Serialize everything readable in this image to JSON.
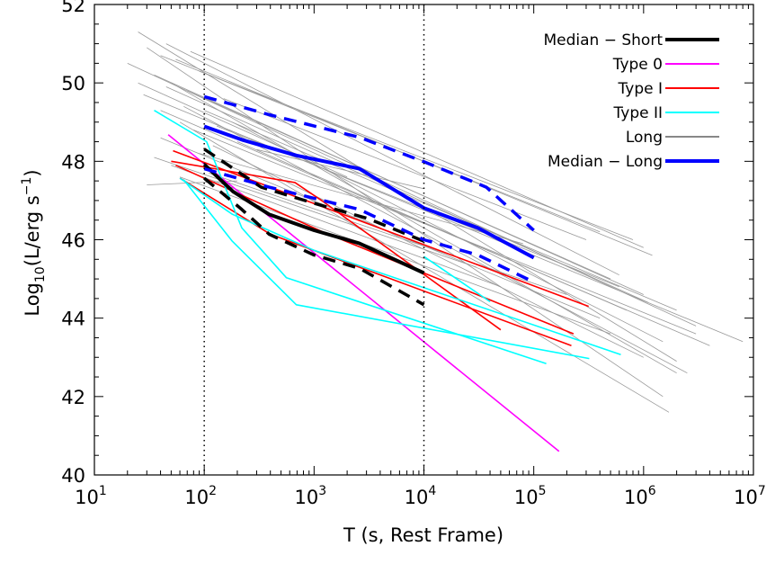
{
  "chart_data": {
    "type": "line",
    "xlabel": "T (s, Rest Frame)",
    "ylabel_main": "Log",
    "ylabel_sub": "10",
    "ylabel_rest": "(L/erg s",
    "ylabel_sup": "−1",
    "ylabel_close": ")",
    "xscale": "log",
    "xlim": [
      10,
      10000000
    ],
    "ylim": [
      40,
      52
    ],
    "xticks": [
      {
        "base": "10",
        "exp": "1",
        "v": 10
      },
      {
        "base": "10",
        "exp": "2",
        "v": 100
      },
      {
        "base": "10",
        "exp": "3",
        "v": 1000
      },
      {
        "base": "10",
        "exp": "4",
        "v": 10000
      },
      {
        "base": "10",
        "exp": "5",
        "v": 100000
      },
      {
        "base": "10",
        "exp": "6",
        "v": 1000000
      },
      {
        "base": "10",
        "exp": "7",
        "v": 10000000
      }
    ],
    "yticks": [
      "40",
      "42",
      "44",
      "46",
      "48",
      "50",
      "52"
    ],
    "vlines": [
      100,
      10000
    ],
    "grid": false,
    "legend_position": "top-right",
    "legend": [
      {
        "label": "Median − Short",
        "color": "#000000",
        "width": 4
      },
      {
        "label": "Type 0",
        "color": "#ff00ff",
        "width": 2
      },
      {
        "label": "Type I",
        "color": "#ff0000",
        "width": 2
      },
      {
        "label": "Type II",
        "color": "#00ffff",
        "width": 2
      },
      {
        "label": "Long",
        "color": "#888888",
        "width": 2
      },
      {
        "label": "Median − Long",
        "color": "#0000ff",
        "width": 4
      }
    ],
    "series": [
      {
        "group": "Long",
        "color": "#999999",
        "width": 0.8,
        "lines": [
          [
            [
              20,
              50.5
            ],
            [
              3000000.0,
              43.8
            ]
          ],
          [
            [
              25,
              51.3
            ],
            [
              2000000.0,
              42.9
            ]
          ],
          [
            [
              30,
              50.9
            ],
            [
              1500000.0,
              42.0
            ]
          ],
          [
            [
              28,
              49.7
            ],
            [
              8000000.0,
              43.4
            ]
          ],
          [
            [
              35,
              50.2
            ],
            [
              1000000.0,
              44.6
            ]
          ],
          [
            [
              40,
              49.3
            ],
            [
              4000000.0,
              43.3
            ]
          ],
          [
            [
              45,
              51.0
            ],
            [
              600000.0,
              45.1
            ]
          ],
          [
            [
              50,
              50.0
            ],
            [
              2000000.0,
              42.6
            ]
          ],
          [
            [
              60,
              49.0
            ],
            [
              1700000.0,
              41.6
            ]
          ],
          [
            [
              55,
              50.6
            ],
            [
              1200000.0,
              45.6
            ]
          ],
          [
            [
              70,
              49.8
            ],
            [
              500000.0,
              45.0
            ]
          ],
          [
            [
              80,
              48.8
            ],
            [
              3000000.0,
              43.6
            ]
          ],
          [
            [
              90,
              50.3
            ],
            [
              800000.0,
              46.0
            ]
          ],
          [
            [
              40,
              48.6
            ],
            [
              400000.0,
              44.0
            ]
          ],
          [
            [
              100,
              49.3
            ],
            [
              2000000.0,
              44.2
            ]
          ],
          [
            [
              120,
              48.4
            ],
            [
              1000000.0,
              43.0
            ]
          ],
          [
            [
              150,
              49.6
            ],
            [
              300000.0,
              46.0
            ]
          ],
          [
            [
              60,
              47.6
            ],
            [
              500000.0,
              43.6
            ]
          ],
          [
            [
              130,
              48.9
            ],
            [
              600000.0,
              44.8
            ]
          ],
          [
            [
              45,
              49.9
            ],
            [
              1100000.0,
              44.4
            ]
          ],
          [
            [
              30,
              47.4
            ],
            [
              200,
              47.5
            ]
          ],
          [
            [
              110,
              47.7
            ],
            [
              200000.0,
              44.6
            ]
          ],
          [
            [
              200,
              48.5
            ],
            [
              700000.0,
              44.2
            ]
          ],
          [
            [
              35,
              48.1
            ],
            [
              30000.0,
              45.3
            ]
          ],
          [
            [
              50,
              47.9
            ],
            [
              50000.0,
              44.8
            ]
          ],
          [
            [
              75,
              50.8
            ],
            [
              1000000.0,
              45.8
            ]
          ],
          [
            [
              300,
              48.3
            ],
            [
              10000.0,
              47.3
            ]
          ],
          [
            [
              25,
              50.0
            ],
            [
              2000,
              47.6
            ]
          ],
          [
            [
              65,
              49.4
            ],
            [
              2500000.0,
              42.6
            ]
          ],
          [
            [
              180,
              49.0
            ],
            [
              1500000.0,
              43.4
            ]
          ],
          [
            [
              90,
              48.2
            ],
            [
              80000.0,
              45.9
            ]
          ],
          [
            [
              40,
              50.7
            ],
            [
              400000.0,
              46.2
            ]
          ]
        ]
      },
      {
        "group": "Type 0",
        "color": "#ff00ff",
        "width": 1.6,
        "lines": [
          [
            [
              47,
              48.68
            ],
            [
              170000,
              40.6
            ]
          ]
        ]
      },
      {
        "group": "Type I",
        "color": "#ff0000",
        "width": 1.6,
        "lines": [
          [
            [
              52,
              48.27
            ],
            [
              316000,
              44.3
            ]
          ],
          [
            [
              50,
              48.0
            ],
            [
              670,
              47.46
            ],
            [
              1170,
              47.0
            ],
            [
              50000,
              43.7
            ]
          ],
          [
            [
              60,
              47.57
            ],
            [
              400,
              46.14
            ],
            [
              220000,
              43.3
            ]
          ],
          [
            [
              55,
              47.9
            ],
            [
              1200,
              46.2
            ],
            [
              230000,
              43.6
            ]
          ]
        ]
      },
      {
        "group": "Type II",
        "color": "#00ffff",
        "width": 1.6,
        "lines": [
          [
            [
              35,
              49.3
            ],
            [
              105,
              48.5
            ],
            [
              220,
              46.3
            ],
            [
              560,
              45.03
            ],
            [
              130000,
              42.84
            ]
          ],
          [
            [
              60,
              47.57
            ],
            [
              180,
              46.65
            ],
            [
              1000,
              45.73
            ],
            [
              620000,
              43.07
            ]
          ],
          [
            [
              65,
              47.53
            ],
            [
              180,
              45.96
            ],
            [
              690,
              44.34
            ],
            [
              320000,
              42.97
            ]
          ],
          [
            [
              10000,
              45.57
            ],
            [
              40000,
              44.42
            ]
          ]
        ]
      },
      {
        "group": "Median − Short",
        "color": "#000000",
        "width": 4,
        "dash": false,
        "lines": [
          [
            [
              100,
              47.92
            ],
            [
              183,
              47.23
            ],
            [
              388,
              46.65
            ],
            [
              1000,
              46.24
            ],
            [
              2570,
              45.91
            ],
            [
              10000,
              45.15
            ]
          ]
        ]
      },
      {
        "group": "Median − Short",
        "color": "#000000",
        "width": 3.5,
        "dash": true,
        "lines": [
          [
            [
              100,
              48.31
            ],
            [
              330,
              47.34
            ],
            [
              1000,
              46.93
            ],
            [
              3100,
              46.54
            ],
            [
              10000,
              45.96
            ]
          ],
          [
            [
              100,
              47.57
            ],
            [
              220,
              46.77
            ],
            [
              390,
              46.14
            ],
            [
              1000,
              45.61
            ],
            [
              2590,
              45.27
            ],
            [
              10000,
              44.34
            ]
          ]
        ]
      },
      {
        "group": "Median − Long",
        "color": "#0000ff",
        "width": 4,
        "dash": false,
        "lines": [
          [
            [
              100,
              48.89
            ],
            [
              221,
              48.55
            ],
            [
              690,
              48.15
            ],
            [
              2590,
              47.81
            ],
            [
              10000,
              46.81
            ],
            [
              31000,
              46.3
            ],
            [
              100000,
              45.54
            ]
          ]
        ]
      },
      {
        "group": "Median − Long",
        "color": "#0000ff",
        "width": 3.5,
        "dash": true,
        "lines": [
          [
            [
              100,
              49.65
            ],
            [
              390,
              49.19
            ],
            [
              2590,
              48.61
            ],
            [
              10000,
              47.99
            ],
            [
              37000,
              47.34
            ],
            [
              100000,
              46.24
            ]
          ],
          [
            [
              100,
              47.81
            ],
            [
              390,
              47.34
            ],
            [
              2590,
              46.77
            ],
            [
              10000,
              46.0
            ],
            [
              31000,
              45.61
            ],
            [
              100000,
              44.92
            ]
          ]
        ]
      }
    ]
  }
}
